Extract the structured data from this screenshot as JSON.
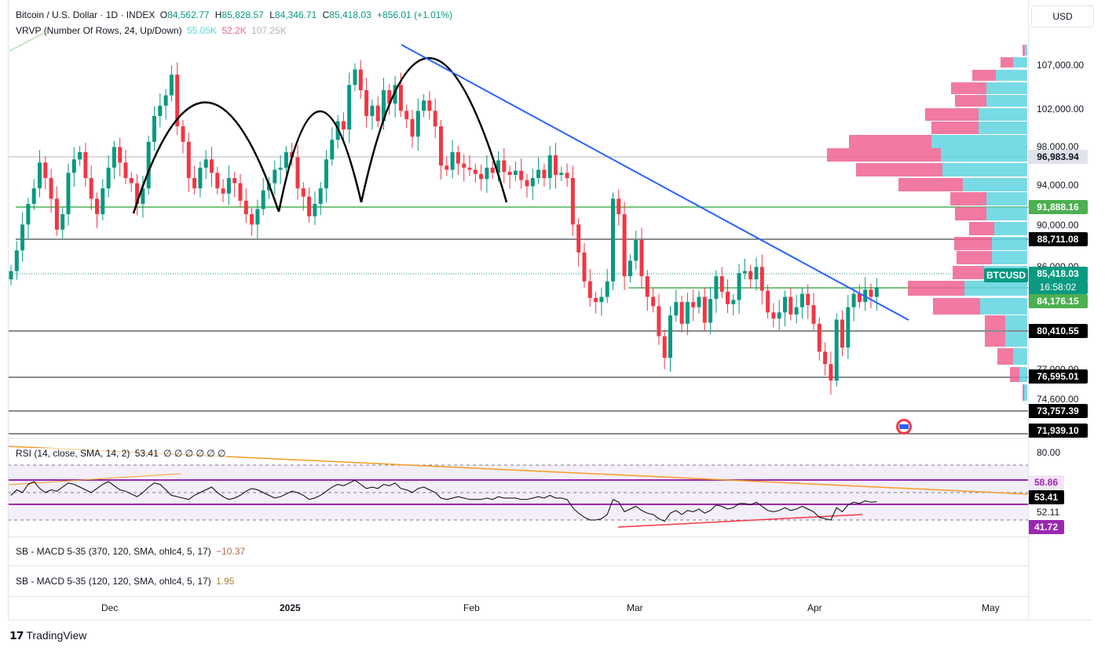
{
  "header": {
    "symbol_line": "Bitcoin / U.S. Dollar · 1D · INDEX",
    "o_label": "O",
    "o": "84,562.77",
    "h_label": "H",
    "h": "85,828.57",
    "l_label": "L",
    "l": "84,346.71",
    "c_label": "C",
    "c": "85,418.03",
    "change": "+856.01 (+1.01%)"
  },
  "vrvp": {
    "label": "VRVP (Number Of Rows, 24, Up/Down)",
    "up": "55.05K",
    "down": "52.2K",
    "total": "107.25K"
  },
  "currency_button": "USD",
  "price_axis": [
    "107,000.00",
    "102,000.00",
    "98,000.00",
    "94,000.00",
    "90,000.00",
    "86,000.00",
    "77,000.00",
    "74,600.00"
  ],
  "price_tags": {
    "p96983": "96,983.94",
    "p91888": "91,888.16",
    "p88711": "88,711.08",
    "symbol": "BTCUSD",
    "last": "85,418.03",
    "countdown": "16:58:02",
    "p84176": "84,176.15",
    "p80410": "80,410.55",
    "p76595": "76,595.01",
    "p73757": "73,757.39",
    "p71939": "71,939.10"
  },
  "rsi": {
    "label": "RSI (14, close, SMA, 14, 2)",
    "value": "53.41",
    "placeholders": "∅ ∅ ∅ ∅ ∅ ∅",
    "axis_top": "80.00",
    "tag_upper": "58.86",
    "tag_value": "53.41",
    "axis_mid": "52.11",
    "tag_lower": "41.72"
  },
  "macd1": {
    "label": "SB - MACD 5-35 (370, 120, SMA, ohlc4, 5, 17)",
    "value": "−10.37"
  },
  "macd2": {
    "label": "SB - MACD 5-35 (120, 120, SMA, ohlc4, 5, 17)",
    "value": "1.95"
  },
  "time_axis": [
    "Dec",
    "2025",
    "Feb",
    "Mar",
    "Apr",
    "May"
  ],
  "brand": "TradingView",
  "colors": {
    "up": "#089981",
    "down": "#f23645",
    "vp_up": "#5fd4e0",
    "vp_down": "#f06292",
    "trend": "#2962ff",
    "rsi_band": "#9c27b0"
  }
}
